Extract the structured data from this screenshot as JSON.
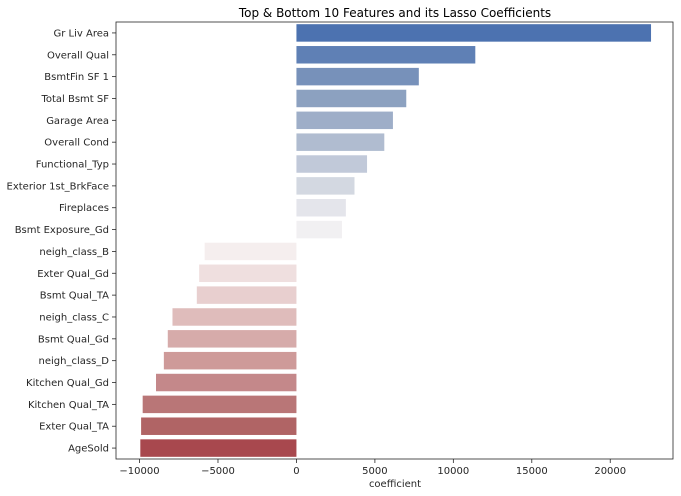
{
  "chart_data": {
    "type": "bar",
    "orientation": "horizontal",
    "title": "Top & Bottom 10 Features and its Lasso Coefficients",
    "xlabel": "coefficient",
    "ylabel": "",
    "xlim": [
      -11500,
      24000
    ],
    "xticks": [
      -10000,
      -5000,
      0,
      5000,
      10000,
      15000,
      20000
    ],
    "xtick_labels": [
      "−10000",
      "−5000",
      "0",
      "5000",
      "10000",
      "15000",
      "20000"
    ],
    "grid": false,
    "categories": [
      "Gr Liv Area",
      "Overall Qual",
      "BsmtFin SF 1",
      "Total Bsmt SF",
      "Garage Area",
      "Overall Cond",
      "Functional_Typ",
      "Exterior 1st_BrkFace",
      "Fireplaces",
      "Bsmt Exposure_Gd",
      "neigh_class_B",
      "Exter Qual_Gd",
      "Bsmt Qual_TA",
      "neigh_class_C",
      "Bsmt Qual_Gd",
      "neigh_class_D",
      "Kitchen Qual_Gd",
      "Kitchen Qual_TA",
      "Exter Qual_TA",
      "AgeSold"
    ],
    "values": [
      22600,
      11400,
      7800,
      7000,
      6150,
      5600,
      4500,
      3700,
      3150,
      2900,
      -5850,
      -6200,
      -6350,
      -7900,
      -8200,
      -8450,
      -8950,
      -9800,
      -9900,
      -9950
    ],
    "colors": [
      "#4c72b0",
      "#5f80b5",
      "#7791ba",
      "#8ca1c0",
      "#9eaec8",
      "#b0bcd0",
      "#c1c9d9",
      "#d3d8e1",
      "#e4e5eb",
      "#f1f0f2",
      "#f5eeee",
      "#efdfdf",
      "#e8cfcf",
      "#dfbcbb",
      "#d6abaa",
      "#ce9a99",
      "#c4888a",
      "#b97677",
      "#b06465",
      "#a8484e"
    ]
  }
}
